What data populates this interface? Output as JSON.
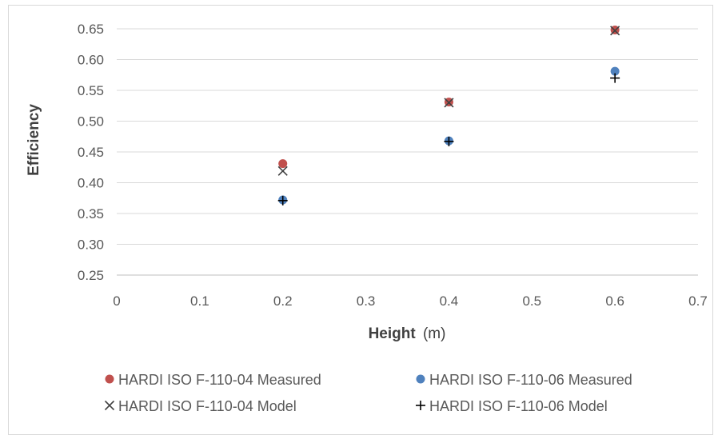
{
  "chart_data": {
    "type": "scatter",
    "ylabel": "Efficiency",
    "xlabel_bold": "Height",
    "xlabel_unit": "(m)",
    "xlim": [
      0,
      0.7
    ],
    "ylim": [
      0.25,
      0.65
    ],
    "x_ticks": [
      0,
      0.1,
      0.2,
      0.3,
      0.4,
      0.5,
      0.6,
      0.7
    ],
    "x_tick_labels": [
      "0",
      "0.1",
      "0.2",
      "0.3",
      "0.4",
      "0.5",
      "0.6",
      "0.7"
    ],
    "y_ticks": [
      0.25,
      0.3,
      0.35,
      0.4,
      0.45,
      0.5,
      0.55,
      0.6,
      0.65
    ],
    "y_tick_labels": [
      "0.25",
      "0.30",
      "0.35",
      "0.40",
      "0.45",
      "0.50",
      "0.55",
      "0.60",
      "0.65"
    ],
    "grid": "horizontal",
    "legend_position": "bottom",
    "series": [
      {
        "name": "HARDI ISO F-110-04 Measured",
        "marker": "circle",
        "color": "#c0504d",
        "x": [
          0.2,
          0.4,
          0.6
        ],
        "y": [
          0.431,
          0.531,
          0.648
        ]
      },
      {
        "name": "HARDI ISO F-110-06 Measured",
        "marker": "circle",
        "color": "#4f81bd",
        "x": [
          0.2,
          0.4,
          0.6
        ],
        "y": [
          0.372,
          0.468,
          0.581
        ]
      },
      {
        "name": "HARDI ISO F-110-04 Model",
        "marker": "x",
        "color": "#404040",
        "x": [
          0.2,
          0.4,
          0.6
        ],
        "y": [
          0.419,
          0.53,
          0.647
        ]
      },
      {
        "name": "HARDI ISO F-110-06 Model",
        "marker": "plus",
        "color": "#000000",
        "x": [
          0.2,
          0.4,
          0.6
        ],
        "y": [
          0.371,
          0.467,
          0.57
        ]
      }
    ]
  }
}
